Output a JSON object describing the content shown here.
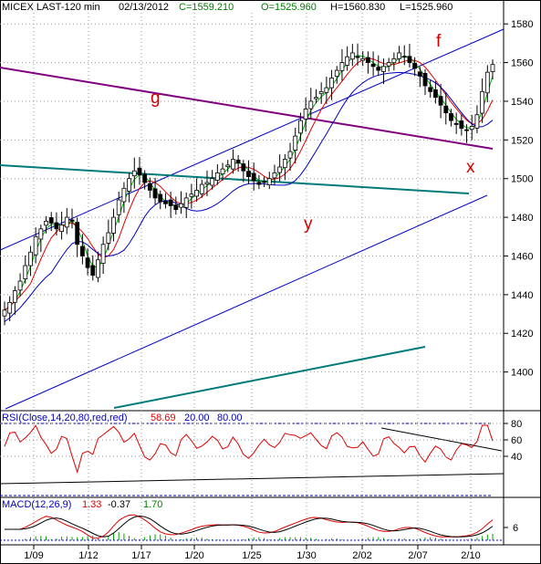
{
  "header": {
    "symbol": "MICEX LAST-120 min",
    "date": "02/13/2012",
    "close": "C=1559.210",
    "open": "O=1525.960",
    "high": "H=1560.830",
    "low": "L=1525.960"
  },
  "rsi_header": {
    "name": "RSI(Close,14,20,80,red,red)",
    "value": "58.69",
    "low": "20.00",
    "high": "80.00"
  },
  "macd_header": {
    "name": "MACD(12,26,9)",
    "macd": "1.33",
    "signal": "-0.37",
    "hist": "1.70"
  },
  "annotations": {
    "g": "g",
    "f": "f",
    "x": "x",
    "y": "y"
  },
  "colors": {
    "header_blue": "#0000c0",
    "header_green": "#008000",
    "candle": "#000000",
    "ma_fast": "#00b000",
    "ma_mid": "#e00000",
    "ma_slow": "#0000c0",
    "channel": "#0000c8",
    "purple": "#80007f",
    "teal": "#007a7a",
    "rsi": "#e00000",
    "macd_hist": "#00a000",
    "annotation": "#d00000"
  },
  "chart_data": {
    "type": "line",
    "title": "MICEX LAST-120 min",
    "price_axis": {
      "ticks": [
        1580,
        1560,
        1540,
        1520,
        1500,
        1480,
        1460,
        1440,
        1420,
        1400
      ],
      "range": [
        1380,
        1590
      ]
    },
    "x_ticks": [
      "1/09",
      "1/12",
      "1/17",
      "1/20",
      "1/25",
      "1/30",
      "2/02",
      "2/07",
      "2/10"
    ],
    "bar_count": 95,
    "close_approx": [
      1432,
      1436,
      1442,
      1447,
      1455,
      1462,
      1470,
      1474,
      1478,
      1477,
      1474,
      1476,
      1480,
      1478,
      1466,
      1460,
      1454,
      1450,
      1458,
      1466,
      1472,
      1480,
      1489,
      1495,
      1500,
      1504,
      1502,
      1498,
      1494,
      1490,
      1488,
      1487,
      1486,
      1484,
      1487,
      1490,
      1492,
      1494,
      1497,
      1498,
      1500,
      1503,
      1505,
      1507,
      1510,
      1508,
      1504,
      1501,
      1499,
      1497,
      1498,
      1500,
      1503,
      1506,
      1510,
      1514,
      1522,
      1530,
      1536,
      1540,
      1542,
      1545,
      1547,
      1552,
      1556,
      1560,
      1563,
      1565,
      1563,
      1562,
      1560,
      1558,
      1556,
      1558,
      1560,
      1562,
      1565,
      1563,
      1560,
      1557,
      1553,
      1548,
      1545,
      1542,
      1538,
      1534,
      1530,
      1528,
      1526,
      1525,
      1527,
      1533,
      1545,
      1555,
      1559
    ],
    "rsi": {
      "ticks": [
        80,
        60,
        40
      ],
      "range": [
        0,
        100
      ],
      "current": 58.69,
      "overbought": 80,
      "oversold": 20
    },
    "macd": {
      "ticks": [
        6
      ],
      "macd": 1.33,
      "signal": -0.37,
      "histogram": 1.7
    }
  }
}
